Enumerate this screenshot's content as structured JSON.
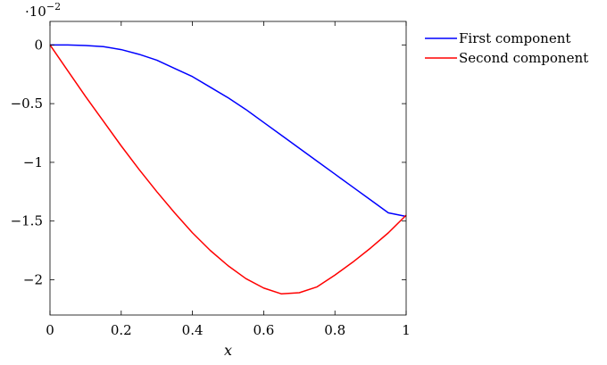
{
  "chart_data": {
    "type": "line",
    "xlabel": "x",
    "ylabel": "",
    "title": "",
    "xlim": [
      0,
      1
    ],
    "ylim": [
      -2.3,
      0.2
    ],
    "y_scale_factor": {
      "base": "·10",
      "exponent": "−2"
    },
    "x_ticks": [
      0,
      0.2,
      0.4,
      0.6,
      0.8,
      1
    ],
    "x_tick_labels": [
      "0",
      "0.2",
      "0.4",
      "0.6",
      "0.8",
      "1"
    ],
    "y_ticks": [
      0,
      -0.5,
      -1,
      -1.5,
      -2
    ],
    "y_tick_labels": [
      "0",
      "−0.5",
      "−1",
      "−1.5",
      "−2"
    ],
    "grid": false,
    "legend_position": "outside-right-top",
    "series": [
      {
        "name": "First component",
        "color": "#0000ff",
        "x": [
          0,
          0.05,
          0.1,
          0.15,
          0.2,
          0.25,
          0.3,
          0.35,
          0.4,
          0.45,
          0.5,
          0.55,
          0.6,
          0.65,
          0.7,
          0.75,
          0.8,
          0.85,
          0.9,
          0.95,
          1.0
        ],
        "y": [
          0,
          0,
          -0.005,
          -0.015,
          -0.04,
          -0.08,
          -0.13,
          -0.2,
          -0.27,
          -0.36,
          -0.45,
          -0.55,
          -0.66,
          -0.77,
          -0.88,
          -0.99,
          -1.1,
          -1.21,
          -1.32,
          -1.43,
          -1.46
        ]
      },
      {
        "name": "Second component",
        "color": "#ff0000",
        "x": [
          0,
          0.05,
          0.1,
          0.15,
          0.2,
          0.25,
          0.3,
          0.35,
          0.4,
          0.45,
          0.5,
          0.55,
          0.6,
          0.65,
          0.7,
          0.75,
          0.8,
          0.85,
          0.9,
          0.95,
          1.0
        ],
        "y": [
          0,
          -0.22,
          -0.44,
          -0.65,
          -0.86,
          -1.06,
          -1.25,
          -1.43,
          -1.6,
          -1.75,
          -1.88,
          -1.99,
          -2.07,
          -2.12,
          -2.11,
          -2.06,
          -1.96,
          -1.85,
          -1.73,
          -1.6,
          -1.45
        ]
      }
    ]
  }
}
